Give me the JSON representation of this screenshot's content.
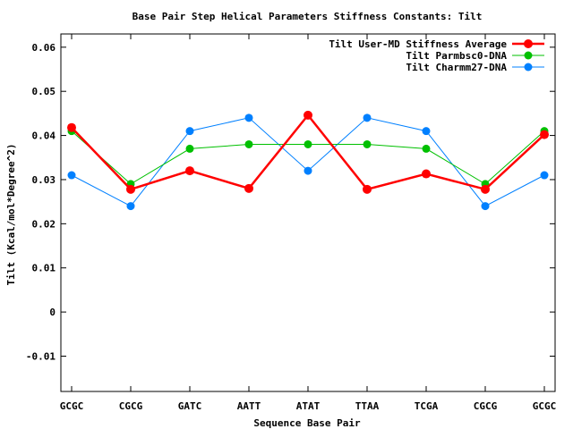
{
  "chart_data": {
    "type": "line",
    "title": "Base Pair Step Helical Parameters Stiffness Constants: Tilt",
    "xlabel": "Sequence Base Pair",
    "ylabel": "Tilt (Kcal/mol*Degree^2)",
    "categories": [
      "GCGC",
      "CGCG",
      "GATC",
      "AATT",
      "ATAT",
      "TTAA",
      "TCGA",
      "CGCG",
      "GCGC"
    ],
    "ylim": [
      -0.018,
      0.063
    ],
    "yticks": [
      -0.01,
      0,
      0.01,
      0.02,
      0.03,
      0.04,
      0.05,
      0.06
    ],
    "ytick_labels": [
      "-0.01",
      "0",
      "0.01",
      "0.02",
      "0.03",
      "0.04",
      "0.05",
      "0.06"
    ],
    "grid": false,
    "legend_position": "top-right",
    "series": [
      {
        "name": "Tilt User-MD Stiffness Average",
        "color": "#ff0000",
        "line_width": 2.5,
        "marker_radius": 5,
        "values": [
          0.0418,
          0.0278,
          0.032,
          0.028,
          0.0446,
          0.0278,
          0.0313,
          0.0278,
          0.0402
        ]
      },
      {
        "name": "Tilt Parmbsc0-DNA",
        "color": "#00c000",
        "line_width": 1,
        "marker_radius": 4.5,
        "values": [
          0.041,
          0.029,
          0.037,
          0.038,
          0.038,
          0.038,
          0.037,
          0.029,
          0.041
        ]
      },
      {
        "name": "Tilt Charmm27-DNA",
        "color": "#0080ff",
        "line_width": 1,
        "marker_radius": 4.5,
        "values": [
          0.031,
          0.024,
          0.041,
          0.044,
          0.032,
          0.044,
          0.041,
          0.024,
          0.031
        ]
      }
    ]
  }
}
